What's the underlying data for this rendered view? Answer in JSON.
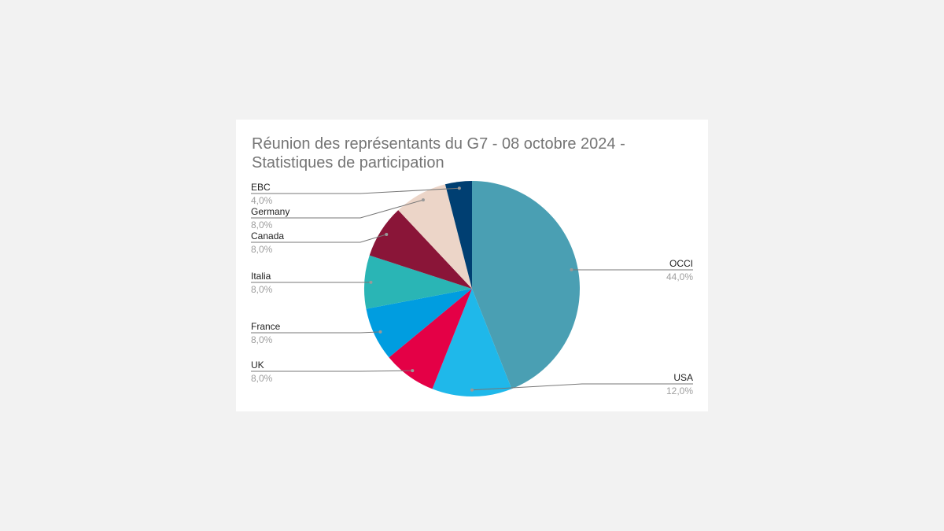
{
  "chart_data": {
    "type": "pie",
    "title_lines": [
      "Réunion des représentants du G7 - 08 octobre 2024 -",
      "Statistiques de participation"
    ],
    "start_angle": "12 o'clock",
    "direction": "clockwise",
    "legend": "leader-line labels",
    "slices": [
      {
        "label": "OCCI",
        "value": 44.0,
        "pct_label": "44,0%",
        "color": "#4a9fb3"
      },
      {
        "label": "USA",
        "value": 12.0,
        "pct_label": "12,0%",
        "color": "#1fb8ea"
      },
      {
        "label": "UK",
        "value": 8.0,
        "pct_label": "8,0%",
        "color": "#e40046"
      },
      {
        "label": "France",
        "value": 8.0,
        "pct_label": "8,0%",
        "color": "#009de0"
      },
      {
        "label": "Italia",
        "value": 8.0,
        "pct_label": "8,0%",
        "color": "#2ab5b5"
      },
      {
        "label": "Canada",
        "value": 8.0,
        "pct_label": "8,0%",
        "color": "#8a1538"
      },
      {
        "label": "Germany",
        "value": 8.0,
        "pct_label": "8,0%",
        "color": "#ecd5c8"
      },
      {
        "label": "EBC",
        "value": 4.0,
        "pct_label": "4,0%",
        "color": "#003f72"
      }
    ]
  }
}
